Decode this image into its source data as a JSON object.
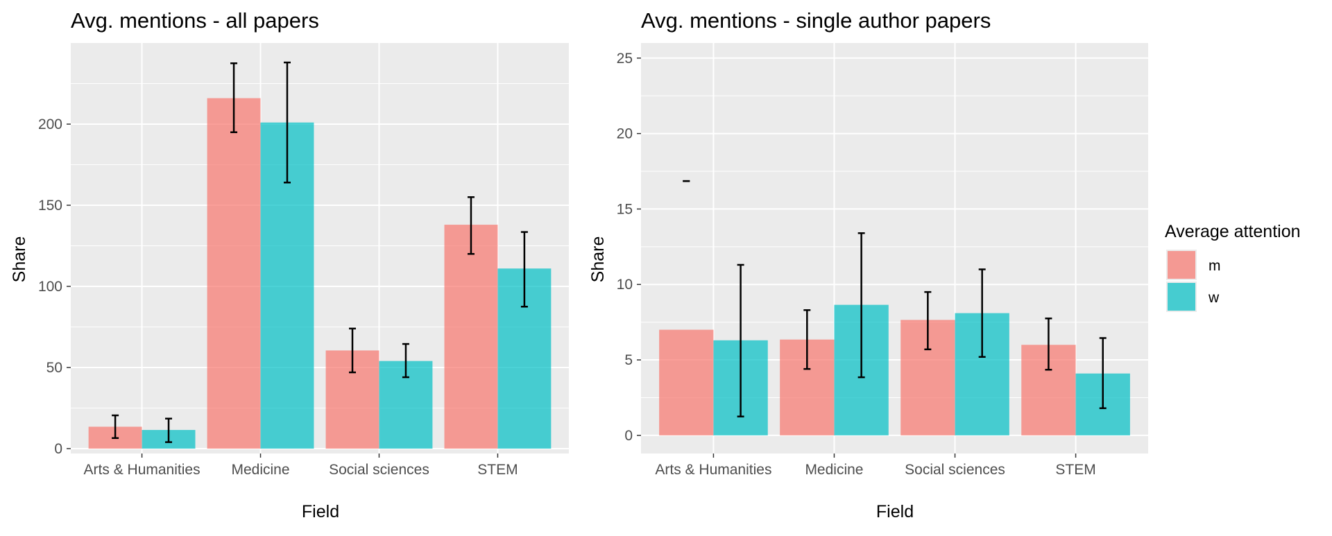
{
  "colors": {
    "m": "#F8766D",
    "w": "#00BFC4",
    "panel_bg": "#EBEBEB",
    "grid": "#FFFFFF",
    "error_bar": "#000000",
    "tick_text": "#4D4D4D"
  },
  "legend": {
    "title": "Average attention",
    "items": [
      {
        "key": "m",
        "label": "m"
      },
      {
        "key": "w",
        "label": "w"
      }
    ]
  },
  "chart_data": [
    {
      "type": "bar",
      "title": "Avg. mentions - all papers",
      "xlabel": "Field",
      "ylabel": "Share",
      "ylim": [
        -3,
        250
      ],
      "yticks": [
        0,
        50,
        100,
        150,
        200
      ],
      "grid": true,
      "legend_placement": "none",
      "categories": [
        "Arts & Humanities",
        "Medicine",
        "Social sciences",
        "STEM"
      ],
      "series": [
        {
          "name": "m",
          "values": [
            13.5,
            216,
            60.5,
            138
          ],
          "error_low": [
            6.5,
            195,
            47,
            120
          ],
          "error_high": [
            20.5,
            237.5,
            74,
            155
          ]
        },
        {
          "name": "w",
          "values": [
            11.5,
            201,
            54,
            111
          ],
          "error_low": [
            4,
            164,
            44,
            87.5
          ],
          "error_high": [
            18.5,
            238,
            64.5,
            133.5
          ]
        }
      ]
    },
    {
      "type": "bar",
      "title": "Avg. mentions - single author papers",
      "xlabel": "Field",
      "ylabel": "Share",
      "ylim": [
        -1.2,
        26
      ],
      "yticks": [
        0,
        5,
        10,
        15,
        20,
        25
      ],
      "grid": true,
      "legend_placement": "right",
      "categories": [
        "Arts & Humanities",
        "Medicine",
        "Social sciences",
        "STEM"
      ],
      "series": [
        {
          "name": "m",
          "values": [
            7.0,
            6.35,
            7.65,
            6.0
          ],
          "error_low": [
            16.85,
            4.4,
            5.7,
            4.35
          ],
          "error_high": [
            16.85,
            8.3,
            9.5,
            7.75
          ]
        },
        {
          "name": "w",
          "values": [
            6.3,
            8.65,
            8.1,
            4.1
          ],
          "error_low": [
            1.25,
            3.85,
            5.2,
            1.8
          ],
          "error_high": [
            11.3,
            13.4,
            11.0,
            6.45
          ]
        }
      ]
    }
  ]
}
